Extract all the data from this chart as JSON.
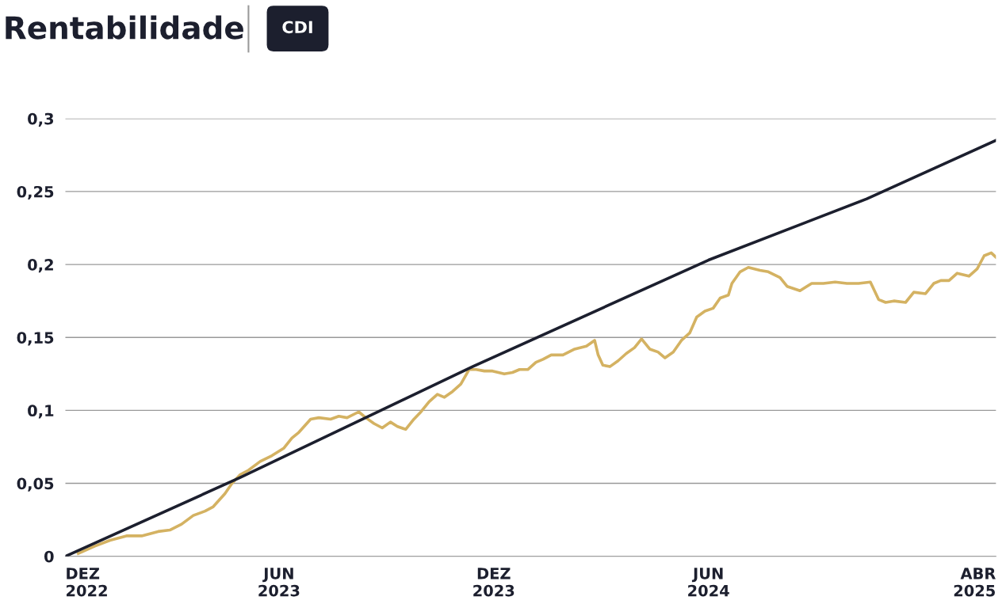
{
  "chart_data": {
    "type": "line",
    "title": "Rentabilidade",
    "xlim": [
      "2022-12-01",
      "2025-02-01"
    ],
    "ylim": [
      0,
      0.3
    ],
    "xticks": [
      {
        "value": "2022-12-01",
        "label": "DEZ\n2022"
      },
      {
        "value": "2023-06-01",
        "label": "JUN\n2023"
      },
      {
        "value": "2023-12-01",
        "label": "DEZ\n2023"
      },
      {
        "value": "2024-06-01",
        "label": "JUN\n2024"
      },
      {
        "value": "2025-02-01",
        "label": "ABR\n2025"
      }
    ],
    "yticks": [
      0,
      {
        "value": 0.05,
        "label": "0,05"
      },
      {
        "value": 0.1,
        "label": "0,1"
      },
      {
        "value": 0.15,
        "label": "0,15"
      },
      {
        "value": 0.2,
        "label": "0,2"
      },
      {
        "value": 0.25,
        "label": "0,25"
      },
      {
        "value": 0.3,
        "label": "0,3"
      }
    ],
    "grid": "y",
    "legend": "top left",
    "series": [
      {
        "color": "#d4b262",
        "x": [
          "2022-12-12",
          "2022-12-26",
          "2023-01-08",
          "2023-01-22",
          "2023-02-04",
          "2023-02-18",
          "2023-02-28",
          "2023-03-10",
          "2023-03-20",
          "2023-03-30",
          "2023-04-06",
          "2023-04-16",
          "2023-04-22",
          "2023-04-29",
          "2023-05-06",
          "2023-05-16",
          "2023-05-26",
          "2023-06-05",
          "2023-06-12",
          "2023-06-18",
          "2023-06-28",
          "2023-07-05",
          "2023-07-15",
          "2023-07-22",
          "2023-07-29",
          "2023-08-08",
          "2023-08-14",
          "2023-08-21",
          "2023-08-28",
          "2023-09-04",
          "2023-09-10",
          "2023-09-17",
          "2023-09-24",
          "2023-09-30",
          "2023-10-07",
          "2023-10-14",
          "2023-10-20",
          "2023-10-27",
          "2023-11-03",
          "2023-11-10",
          "2023-11-16",
          "2023-11-23",
          "2023-11-30",
          "2023-12-10",
          "2023-12-17",
          "2023-12-23",
          "2023-12-30",
          "2024-01-06",
          "2024-01-12",
          "2024-01-19",
          "2024-01-29",
          "2024-02-08",
          "2024-02-18",
          "2024-02-25",
          "2024-02-28",
          "2024-03-03",
          "2024-03-09",
          "2024-03-16",
          "2024-03-23",
          "2024-03-30",
          "2024-04-05",
          "2024-04-12",
          "2024-04-19",
          "2024-04-25",
          "2024-05-02",
          "2024-05-09",
          "2024-05-16",
          "2024-05-22",
          "2024-05-29",
          "2024-06-05",
          "2024-06-11",
          "2024-06-18",
          "2024-06-21",
          "2024-06-28",
          "2024-07-05",
          "2024-07-15",
          "2024-07-22",
          "2024-08-01",
          "2024-08-07",
          "2024-08-18",
          "2024-08-28",
          "2024-09-07",
          "2024-09-17",
          "2024-09-27",
          "2024-10-07",
          "2024-10-17",
          "2024-10-24",
          "2024-10-30",
          "2024-11-06",
          "2024-11-16",
          "2024-11-23",
          "2024-12-03",
          "2024-12-10",
          "2024-12-16",
          "2024-12-23",
          "2024-12-30",
          "2025-01-09",
          "2025-01-16",
          "2025-01-22",
          "2025-01-28",
          "2025-02-01"
        ],
        "values": [
          0.002,
          0.007,
          0.011,
          0.014,
          0.014,
          0.017,
          0.018,
          0.022,
          0.028,
          0.031,
          0.034,
          0.043,
          0.05,
          0.056,
          0.059,
          0.065,
          0.069,
          0.074,
          0.081,
          0.085,
          0.094,
          0.095,
          0.094,
          0.096,
          0.095,
          0.099,
          0.095,
          0.091,
          0.088,
          0.092,
          0.089,
          0.087,
          0.094,
          0.099,
          0.106,
          0.111,
          0.109,
          0.113,
          0.118,
          0.128,
          0.128,
          0.127,
          0.127,
          0.125,
          0.126,
          0.128,
          0.128,
          0.133,
          0.135,
          0.138,
          0.138,
          0.142,
          0.144,
          0.148,
          0.138,
          0.131,
          0.13,
          0.134,
          0.139,
          0.143,
          0.149,
          0.142,
          0.14,
          0.136,
          0.14,
          0.148,
          0.153,
          0.164,
          0.168,
          0.17,
          0.177,
          0.179,
          0.187,
          0.195,
          0.198,
          0.196,
          0.195,
          0.191,
          0.185,
          0.182,
          0.187,
          0.187,
          0.188,
          0.187,
          0.187,
          0.188,
          0.176,
          0.174,
          0.175,
          0.174,
          0.181,
          0.18,
          0.187,
          0.189,
          0.189,
          0.194,
          0.192,
          0.197,
          0.206,
          0.208,
          0.205
        ]
      },
      {
        "name": "CDI",
        "color": "#1c1f2e",
        "x": [
          "2022-12-01",
          "2023-04-29",
          "2023-11-13",
          "2024-06-01",
          "2024-10-14",
          "2025-02-01"
        ],
        "values": [
          0,
          0.054,
          0.13,
          0.203,
          0.245,
          0.285
        ]
      }
    ]
  }
}
